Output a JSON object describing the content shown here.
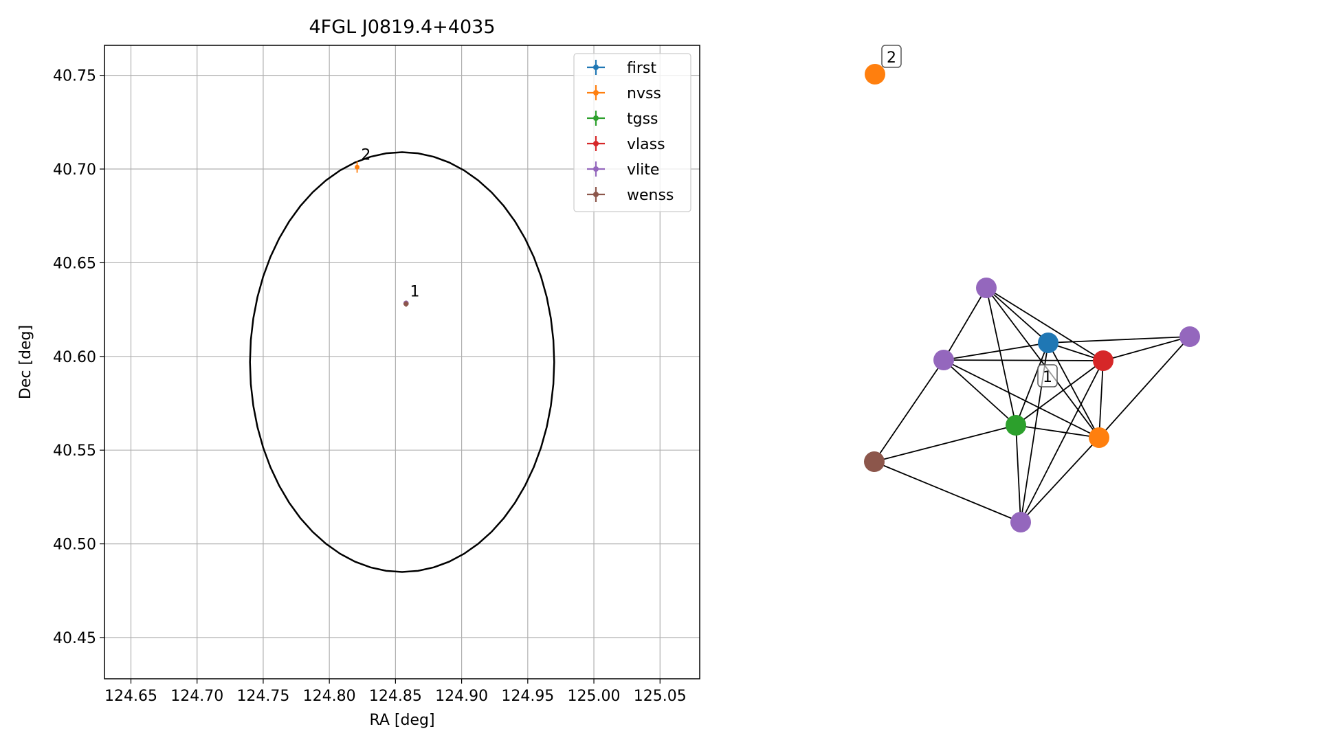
{
  "chart_data": [
    {
      "type": "scatter",
      "title": "4FGL J0819.4+4035",
      "xlabel": "RA [deg]",
      "ylabel": "Dec [deg]",
      "xlim": [
        124.63,
        125.08
      ],
      "ylim": [
        40.428,
        40.766
      ],
      "xticks": [
        "124.65",
        "124.70",
        "124.75",
        "124.80",
        "124.85",
        "124.90",
        "124.95",
        "125.00",
        "125.05"
      ],
      "yticks": [
        "40.45",
        "40.50",
        "40.55",
        "40.60",
        "40.65",
        "40.70",
        "40.75"
      ],
      "grid": true,
      "legend_placement": "top-right",
      "series": [
        {
          "name": "first",
          "color": "#1f77b4",
          "points": [
            {
              "x": 124.858,
              "y": 40.6285,
              "xerr": 0.0005,
              "yerr": 0.0005
            }
          ]
        },
        {
          "name": "nvss",
          "color": "#ff7f0e",
          "points": [
            {
              "x": 124.821,
              "y": 40.701,
              "xerr": 0.0015,
              "yerr": 0.003
            }
          ]
        },
        {
          "name": "tgss",
          "color": "#2ca02c",
          "points": [
            {
              "x": 124.858,
              "y": 40.6285,
              "xerr": 0.0008,
              "yerr": 0.0008
            }
          ]
        },
        {
          "name": "vlass",
          "color": "#d62728",
          "points": [
            {
              "x": 124.858,
              "y": 40.6285,
              "xerr": 0.0004,
              "yerr": 0.0004
            }
          ]
        },
        {
          "name": "vlite",
          "color": "#9467bd",
          "points": [
            {
              "x": 124.858,
              "y": 40.6285,
              "xerr": 0.0012,
              "yerr": 0.0012
            }
          ]
        },
        {
          "name": "wenss",
          "color": "#8c564b",
          "points": [
            {
              "x": 124.858,
              "y": 40.628,
              "xerr": 0.002,
              "yerr": 0.0015
            }
          ]
        }
      ],
      "ellipse": {
        "center": [
          124.855,
          40.597
        ],
        "semi_axis_ra": 0.115,
        "semi_axis_dec": 0.112,
        "color": "#000000"
      },
      "annotations": [
        {
          "text": "1",
          "x": 124.861,
          "y": 40.632
        },
        {
          "text": "2",
          "x": 124.824,
          "y": 40.705
        }
      ]
    },
    {
      "type": "network",
      "nodes": [
        {
          "id": "n2",
          "color": "#ff7f0e",
          "label": "2"
        },
        {
          "id": "v1",
          "color": "#9467bd"
        },
        {
          "id": "b",
          "color": "#1f77b4"
        },
        {
          "id": "v2",
          "color": "#9467bd"
        },
        {
          "id": "r",
          "color": "#d62728"
        },
        {
          "id": "v3",
          "color": "#9467bd"
        },
        {
          "id": "g",
          "color": "#2ca02c"
        },
        {
          "id": "o",
          "color": "#ff7f0e"
        },
        {
          "id": "w",
          "color": "#8c564b"
        },
        {
          "id": "v4",
          "color": "#9467bd"
        }
      ],
      "cluster_label": "1",
      "edges": [
        [
          "v1",
          "v3"
        ],
        [
          "v1",
          "b"
        ],
        [
          "v1",
          "r"
        ],
        [
          "v1",
          "g"
        ],
        [
          "v1",
          "o"
        ],
        [
          "v3",
          "b"
        ],
        [
          "v3",
          "r"
        ],
        [
          "v3",
          "g"
        ],
        [
          "v3",
          "o"
        ],
        [
          "v3",
          "w"
        ],
        [
          "b",
          "r"
        ],
        [
          "b",
          "g"
        ],
        [
          "b",
          "o"
        ],
        [
          "b",
          "v4"
        ],
        [
          "b",
          "v2"
        ],
        [
          "r",
          "g"
        ],
        [
          "r",
          "o"
        ],
        [
          "r",
          "v4"
        ],
        [
          "r",
          "v2"
        ],
        [
          "g",
          "o"
        ],
        [
          "g",
          "w"
        ],
        [
          "g",
          "v4"
        ],
        [
          "o",
          "v2"
        ],
        [
          "o",
          "v4"
        ],
        [
          "w",
          "v4"
        ]
      ]
    }
  ]
}
